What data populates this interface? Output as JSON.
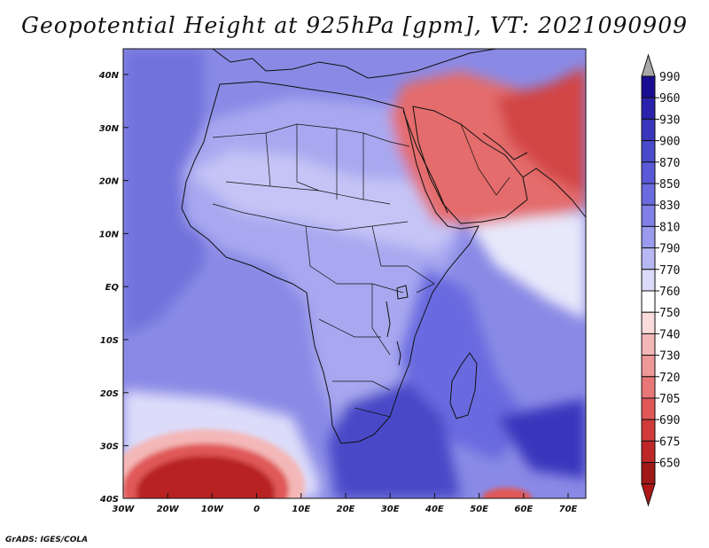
{
  "title": "Geopotential Height at 925hPa [gpm], VT: 2021090909",
  "footer": "GrADS: IGES/COLA",
  "axes": {
    "lat_ticks": [
      "40N",
      "30N",
      "20N",
      "10N",
      "EQ",
      "10S",
      "20S",
      "30S",
      "40S"
    ],
    "lon_ticks": [
      "30W",
      "20W",
      "10W",
      "0",
      "10E",
      "20E",
      "30E",
      "40E",
      "50E",
      "60E",
      "70E"
    ]
  },
  "colorbar": {
    "labels": [
      "990",
      "960",
      "930",
      "900",
      "870",
      "850",
      "830",
      "810",
      "790",
      "770",
      "760",
      "750",
      "740",
      "730",
      "720",
      "705",
      "690",
      "675",
      "650"
    ],
    "colors": [
      "#1a0c90",
      "#2a22ac",
      "#3a36bc",
      "#4a4acc",
      "#5a5ad8",
      "#6b6be0",
      "#8080e8",
      "#9a9aee",
      "#b7b7f4",
      "#dcdcfa",
      "#ffffff",
      "#fadcdc",
      "#f4b7b7",
      "#ee9898",
      "#e87878",
      "#e05858",
      "#d03a3a",
      "#bf2828",
      "#a01818"
    ],
    "top_arrow_color": "#a8a8a8",
    "bottom_arrow_color": "#b01818"
  },
  "field_colors": {
    "ocean_base": "#8a8ae6",
    "africa_land": "#a8a8f0",
    "sahara_light": "#c4c4f6",
    "east_africa": "#6b6be0",
    "southern_africa": "#4848c8",
    "arabia_red": "#e46c6c",
    "persia_red": "#d24444",
    "southern_low": "#b82020"
  }
}
